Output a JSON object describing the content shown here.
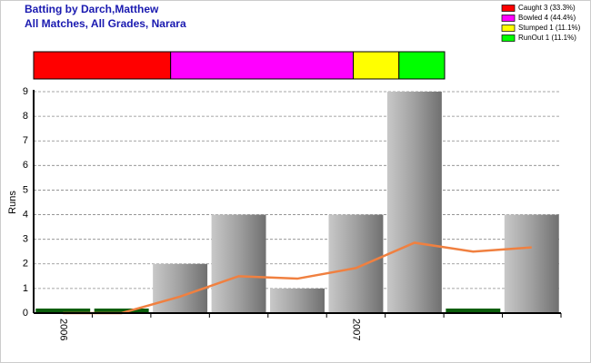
{
  "chart_data": {
    "type": "bar",
    "title": "Batting by Darch,Matthew",
    "subtitle": "All Matches, All Grades, Narara",
    "y_label": "Runs",
    "categories": [
      "2006",
      null,
      null,
      null,
      null,
      "2007",
      null,
      null,
      null
    ],
    "values": [
      0,
      0,
      2,
      4,
      1,
      4,
      9,
      0,
      4
    ],
    "color": "#a8a8a8",
    "zero_bar_color": "#0b5e0b",
    "line": {
      "color": "#f08040",
      "values": [
        0,
        0,
        0.67,
        1.5,
        1.4,
        1.83,
        2.86,
        2.5,
        2.67
      ]
    },
    "ylim": [
      0,
      9
    ],
    "yticks": [
      0,
      1,
      2,
      3,
      4,
      5,
      6,
      7,
      8,
      9
    ],
    "grid": true,
    "dismissals": {
      "labels": [
        "Caught 3 (33.3%)",
        "Bowled 4 (44.4%)",
        "Stumped 1 (11.1%)",
        "RunOut 1 (11.1%)"
      ],
      "values": [
        3,
        4,
        1,
        1
      ],
      "colors": [
        "#ff0000",
        "#ff00ff",
        "#ffff00",
        "#00ff00"
      ]
    },
    "legend_position": "top-right"
  }
}
